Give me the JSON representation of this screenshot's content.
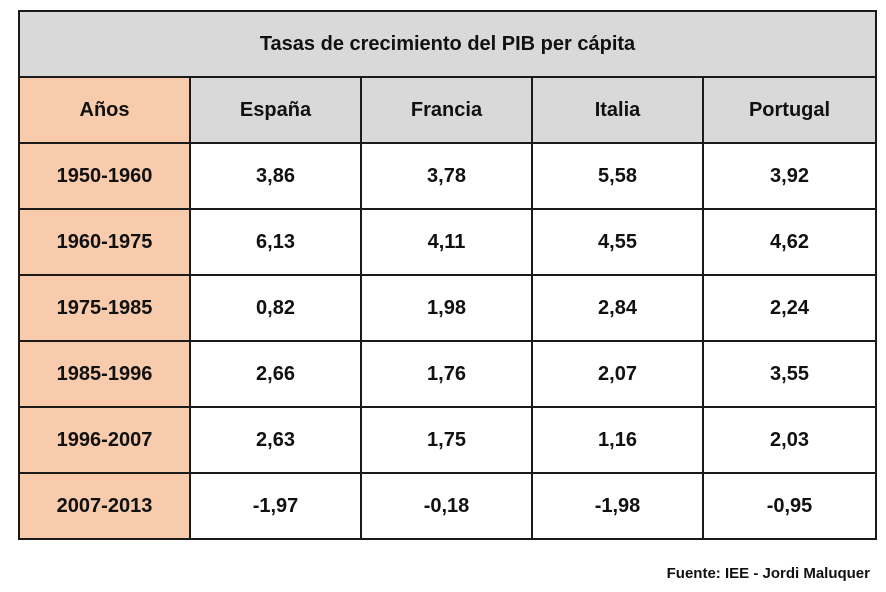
{
  "table": {
    "title": "Tasas de crecimiento del PIB per cápita",
    "headers": [
      "Años",
      "España",
      "Francia",
      "Italia",
      "Portugal"
    ],
    "rows": [
      {
        "period": "1950-1960",
        "values": [
          "3,86",
          "3,78",
          "5,58",
          "3,92"
        ]
      },
      {
        "period": "1960-1975",
        "values": [
          "6,13",
          "4,11",
          "4,55",
          "4,62"
        ]
      },
      {
        "period": "1975-1985",
        "values": [
          "0,82",
          "1,98",
          "2,84",
          "2,24"
        ]
      },
      {
        "period": "1985-1996",
        "values": [
          "2,66",
          "1,76",
          "2,07",
          "3,55"
        ]
      },
      {
        "period": "1996-2007",
        "values": [
          "2,63",
          "1,75",
          "1,16",
          "2,03"
        ]
      },
      {
        "period": "2007-2013",
        "values": [
          "-1,97",
          "-0,18",
          "-1,98",
          "-0,95"
        ]
      }
    ]
  },
  "source": "Fuente: IEE - Jordi Maluquer",
  "colors": {
    "header_gray": "#d9d9d9",
    "period_peach": "#f7cbac",
    "border": "#1a1a1a"
  }
}
